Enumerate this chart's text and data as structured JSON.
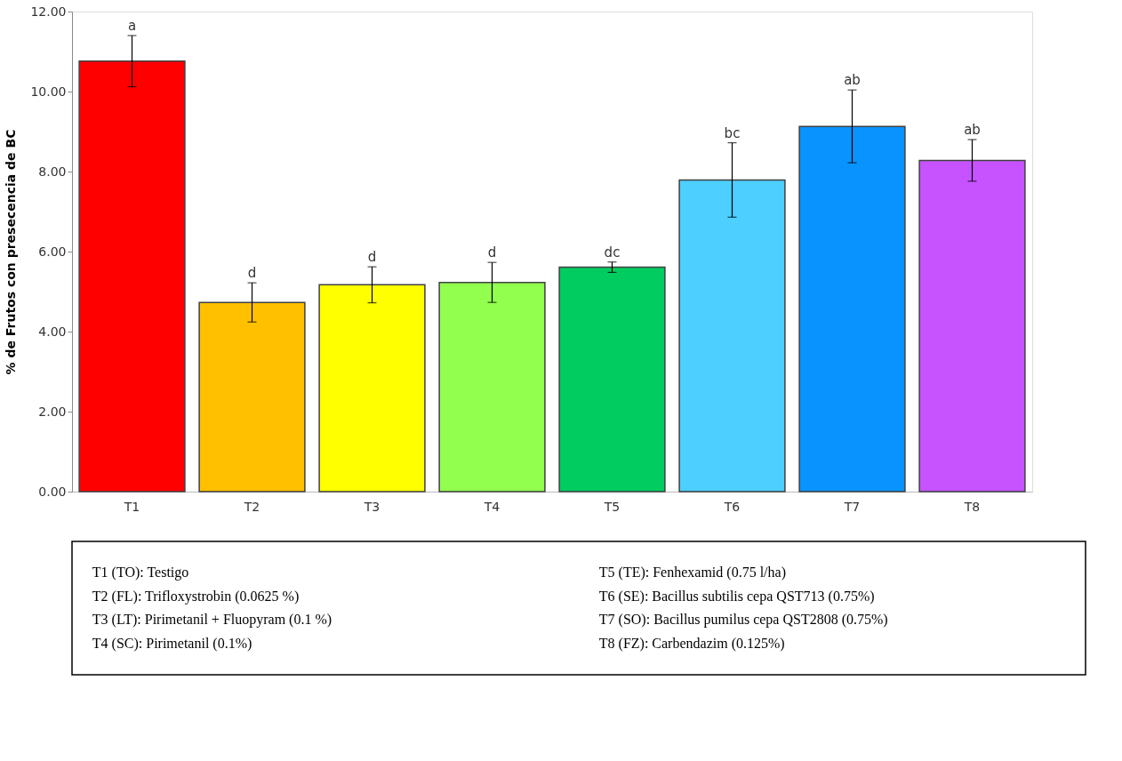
{
  "chart_data": {
    "type": "bar",
    "ylabel": "% de Frutos con presecencia de BC",
    "categories": [
      "T1",
      "T2",
      "T3",
      "T4",
      "T5",
      "T6",
      "T7",
      "T8"
    ],
    "values": [
      10.76,
      4.73,
      5.17,
      5.23,
      5.61,
      7.79,
      9.13,
      8.28
    ],
    "errors": [
      0.64,
      0.49,
      0.45,
      0.5,
      0.13,
      0.93,
      0.91,
      0.52
    ],
    "colors": [
      "#ff0000",
      "#ffc000",
      "#ffff00",
      "#92ff4f",
      "#00cc60",
      "#4dcfff",
      "#0893ff",
      "#c653ff"
    ],
    "ylim": [
      0,
      12
    ],
    "yticks": [
      {
        "value": 0,
        "label": "0.00"
      },
      {
        "value": 2,
        "label": "2.00"
      },
      {
        "value": 4,
        "label": "4.00"
      },
      {
        "value": 6,
        "label": "6.00"
      },
      {
        "value": 8,
        "label": "8.00"
      },
      {
        "value": 10,
        "label": "10.00"
      },
      {
        "value": 12,
        "label": "12.00"
      }
    ],
    "grid": false,
    "value_labels": [
      "a",
      "d",
      "d",
      "d",
      "dc",
      "bc",
      "ab",
      "ab"
    ],
    "annotations": [
      "T1 (TO): Testigo",
      "T2 (FL): Trifloxystrobin (0.0625 %)",
      "T3 (LT): Pirimetanil + Fluopyram (0.1 %)",
      "T4 (SC): Pirimetanil (0.1%)",
      "T5 (TE): Fenhexamid (0.75 l/ha)",
      "T6 (SE): Bacillus subtilis cepa QST713 (0.75%)",
      "T7 (SO): Bacillus pumilus cepa QST2808 (0.75%)",
      "T8 (FZ): Carbendazim (0.125%)"
    ]
  }
}
